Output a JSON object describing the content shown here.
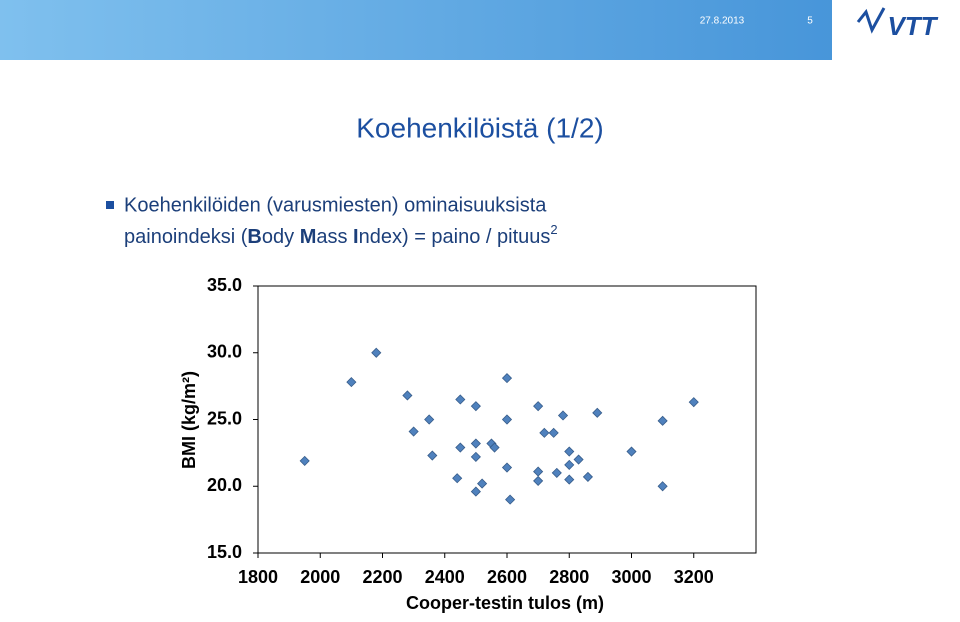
{
  "header": {
    "date": "27.8.2013",
    "page": "5",
    "logo": "VTT"
  },
  "slide": {
    "title": "Koehenkilöistä (1/2)",
    "bullet": "Koehenkilöiden (varusmiesten) ominaisuuksista",
    "formula": [
      {
        "text": "painoindeksi (",
        "bold": false
      },
      {
        "text": "B",
        "bold": true
      },
      {
        "text": "ody ",
        "bold": false
      },
      {
        "text": "M",
        "bold": true
      },
      {
        "text": "ass ",
        "bold": false
      },
      {
        "text": "I",
        "bold": true
      },
      {
        "text": "ndex) = paino / pituus",
        "bold": false
      },
      {
        "text": "2",
        "bold": false,
        "sup": true
      }
    ]
  },
  "chart_data": {
    "type": "scatter",
    "x_label": "Cooper-testin tulos (m)",
    "y_label": "BMI (kg/m²)",
    "color": "#4f81bd",
    "x": [
      1950,
      2100,
      2180,
      2280,
      2300,
      2350,
      2360,
      2440,
      2450,
      2450,
      2500,
      2500,
      2500,
      2500,
      2520,
      2550,
      2560,
      2600,
      2600,
      2600,
      2610,
      2700,
      2700,
      2700,
      2720,
      2750,
      2760,
      2780,
      2800,
      2800,
      2800,
      2830,
      2860,
      2890,
      3000,
      3100,
      3100,
      3200
    ],
    "values": [
      21.9,
      27.8,
      30.0,
      26.8,
      24.1,
      25.0,
      22.3,
      20.6,
      26.5,
      22.9,
      26.0,
      23.2,
      22.2,
      19.6,
      20.2,
      23.2,
      22.9,
      28.1,
      25.0,
      21.4,
      19.0,
      26.0,
      21.1,
      20.4,
      24.0,
      24.0,
      21.0,
      25.3,
      22.6,
      21.6,
      20.5,
      22.0,
      20.7,
      25.5,
      22.6,
      24.9,
      20.0,
      26.3
    ],
    "xlim": [
      1800,
      3400
    ],
    "xticks": [
      1800,
      2000,
      2200,
      2400,
      2600,
      2800,
      3000,
      3200
    ],
    "ylim": [
      15,
      35
    ],
    "yticks": [
      {
        "value": 15,
        "label": "15.0"
      },
      {
        "value": 20,
        "label": "20.0"
      },
      {
        "value": 25,
        "label": "25.0"
      },
      {
        "value": 30,
        "label": "30.0"
      },
      {
        "value": 35,
        "label": "35.0"
      }
    ],
    "grid": false
  }
}
